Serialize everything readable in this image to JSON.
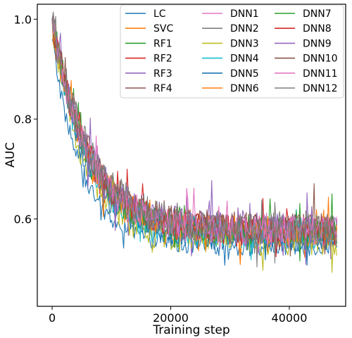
{
  "chart_data": {
    "type": "line",
    "title": "",
    "xlabel": "Training step",
    "ylabel": "AUC",
    "xlim": [
      -2500,
      49500
    ],
    "ylim": [
      0.425,
      1.03
    ],
    "x_ticks": [
      0,
      20000,
      40000
    ],
    "x_tick_labels": [
      "0",
      "20000",
      "40000"
    ],
    "y_ticks": [
      0.6,
      0.8,
      1.0
    ],
    "y_tick_labels": [
      "0.6",
      "0.8",
      "1.0"
    ],
    "x_range": [
      0,
      48000
    ],
    "n_points": 240,
    "grid": false,
    "legend": {
      "position": "top-right",
      "columns": 3
    },
    "series": [
      {
        "name": "LC",
        "color": "#1f77b4",
        "start": 0.96,
        "plateau": 0.545,
        "decay": 5000,
        "noise": 0.02
      },
      {
        "name": "SVC",
        "color": "#ff7f0e",
        "start": 1.0,
        "plateau": 0.57,
        "decay": 5500,
        "noise": 0.025
      },
      {
        "name": "RF1",
        "color": "#2ca02c",
        "start": 1.0,
        "plateau": 0.575,
        "decay": 5500,
        "noise": 0.025
      },
      {
        "name": "RF2",
        "color": "#d62728",
        "start": 1.0,
        "plateau": 0.58,
        "decay": 6000,
        "noise": 0.025
      },
      {
        "name": "RF3",
        "color": "#9467bd",
        "start": 1.0,
        "plateau": 0.575,
        "decay": 5800,
        "noise": 0.028
      },
      {
        "name": "RF4",
        "color": "#8c564b",
        "start": 1.0,
        "plateau": 0.58,
        "decay": 6200,
        "noise": 0.028
      },
      {
        "name": "DNN1",
        "color": "#e377c2",
        "start": 1.0,
        "plateau": 0.575,
        "decay": 5800,
        "noise": 0.03
      },
      {
        "name": "DNN2",
        "color": "#7f7f7f",
        "start": 1.0,
        "plateau": 0.575,
        "decay": 6000,
        "noise": 0.03
      },
      {
        "name": "DNN3",
        "color": "#bcbd22",
        "start": 1.0,
        "plateau": 0.56,
        "decay": 5500,
        "noise": 0.035
      },
      {
        "name": "DNN4",
        "color": "#17becf",
        "start": 1.0,
        "plateau": 0.57,
        "decay": 5700,
        "noise": 0.03
      },
      {
        "name": "DNN5",
        "color": "#1f77b4",
        "start": 1.0,
        "plateau": 0.565,
        "decay": 5600,
        "noise": 0.03
      },
      {
        "name": "DNN6",
        "color": "#ff7f0e",
        "start": 1.0,
        "plateau": 0.575,
        "decay": 5900,
        "noise": 0.03
      },
      {
        "name": "DNN7",
        "color": "#2ca02c",
        "start": 1.0,
        "plateau": 0.575,
        "decay": 6000,
        "noise": 0.03
      },
      {
        "name": "DNN8",
        "color": "#d62728",
        "start": 1.0,
        "plateau": 0.575,
        "decay": 6100,
        "noise": 0.03
      },
      {
        "name": "DNN9",
        "color": "#9467bd",
        "start": 1.0,
        "plateau": 0.58,
        "decay": 6200,
        "noise": 0.032
      },
      {
        "name": "DNN10",
        "color": "#8c564b",
        "start": 1.0,
        "plateau": 0.58,
        "decay": 6200,
        "noise": 0.032
      },
      {
        "name": "DNN11",
        "color": "#e377c2",
        "start": 1.0,
        "plateau": 0.575,
        "decay": 6000,
        "noise": 0.03
      },
      {
        "name": "DNN12",
        "color": "#7f7f7f",
        "start": 1.0,
        "plateau": 0.58,
        "decay": 6300,
        "noise": 0.035
      }
    ]
  }
}
